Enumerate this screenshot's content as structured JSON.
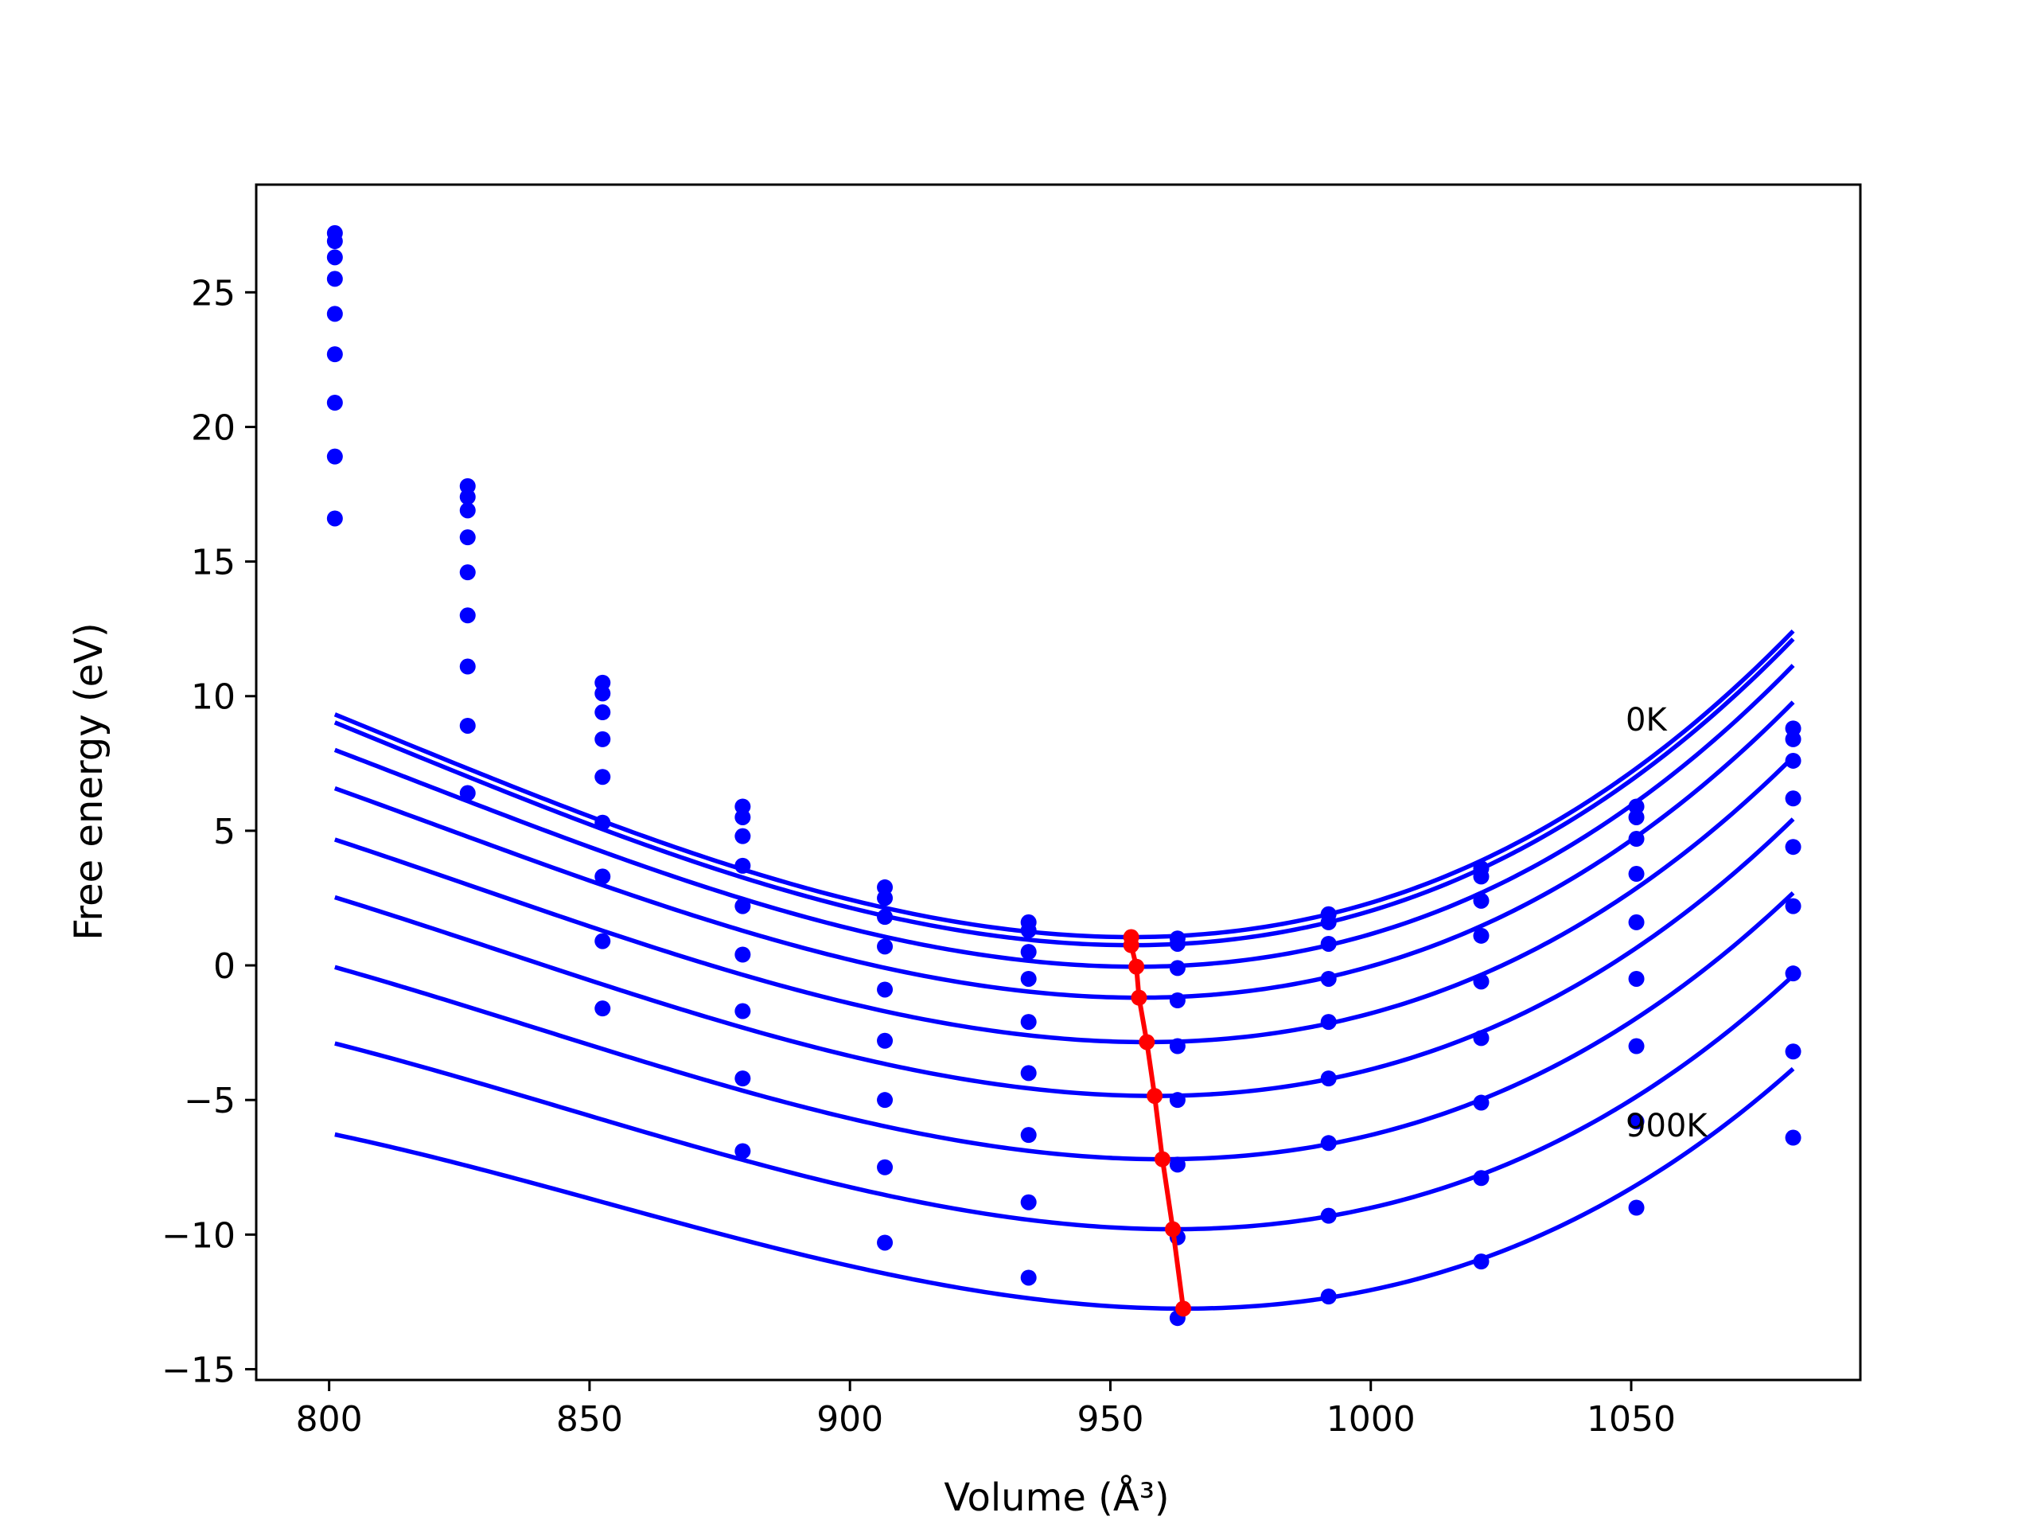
{
  "chart_data": {
    "type": "line",
    "title": "",
    "xlabel": "Volume (Å³)",
    "ylabel": "Free energy (eV)",
    "xlim": [
      786,
      1094
    ],
    "ylim": [
      -15.4,
      29.0
    ],
    "xticks": [
      800,
      850,
      900,
      950,
      1000,
      1050
    ],
    "yticks": [
      -15,
      -10,
      -5,
      0,
      5,
      10,
      15,
      20,
      25
    ],
    "xtick_labels": [
      "800",
      "850",
      "900",
      "950",
      "1000",
      "1050"
    ],
    "ytick_labels": [
      "−15",
      "−10",
      "−5",
      "0",
      "5",
      "10",
      "15",
      "20",
      "25"
    ],
    "grid": false,
    "legend": "none",
    "colors": {
      "fit": "#0000ff",
      "points": "#0000ff",
      "minimum": "#ff0000",
      "axes": "#000000"
    },
    "volumes": [
      801.1,
      826.6,
      852.5,
      879.4,
      906.7,
      934.3,
      962.9,
      991.9,
      1021.2,
      1051.0,
      1081.1
    ],
    "series": [
      {
        "points": [
          27.2,
          17.8,
          10.5,
          5.9,
          2.9,
          1.6,
          1.0,
          1.9,
          3.6,
          5.9,
          8.8
        ],
        "fit": {
          "e0": 1.05,
          "v0": 954.0,
          "a": 0.000545,
          "b": 1.25e-06
        }
      },
      {
        "points": [
          26.9,
          17.4,
          10.1,
          5.5,
          2.5,
          1.3,
          0.8,
          1.6,
          3.3,
          5.5,
          8.4
        ],
        "fit": {
          "e0": 0.75,
          "v0": 954.0,
          "a": 0.000545,
          "b": 1.25e-06
        }
      },
      {
        "points": [
          26.3,
          16.9,
          9.4,
          4.8,
          1.8,
          0.5,
          -0.1,
          0.8,
          2.4,
          4.7,
          7.6
        ],
        "fit": {
          "e0": -0.05,
          "v0": 955.0,
          "a": 0.00054,
          "b": 1.3e-06
        }
      },
      {
        "points": [
          25.5,
          15.9,
          8.4,
          3.7,
          0.7,
          -0.5,
          -1.3,
          -0.5,
          1.1,
          3.4,
          6.2
        ],
        "fit": {
          "e0": -1.2,
          "v0": 955.5,
          "a": 0.00053,
          "b": 1.32e-06
        }
      },
      {
        "points": [
          24.2,
          14.6,
          7.0,
          2.2,
          -0.9,
          -2.1,
          -3.0,
          -2.1,
          -0.6,
          1.6,
          4.4
        ],
        "fit": {
          "e0": -2.85,
          "v0": 957.0,
          "a": 0.00052,
          "b": 1.35e-06
        }
      },
      {
        "points": [
          22.7,
          13.0,
          5.3,
          0.4,
          -2.8,
          -4.0,
          -5.0,
          -4.2,
          -2.7,
          -0.5,
          2.2
        ],
        "fit": {
          "e0": -4.85,
          "v0": 958.5,
          "a": 0.000515,
          "b": 1.38e-06
        }
      },
      {
        "points": [
          20.9,
          11.1,
          3.3,
          -1.7,
          -5.0,
          -6.3,
          -7.4,
          -6.6,
          -5.1,
          -3.0,
          -0.3
        ],
        "fit": {
          "e0": -7.2,
          "v0": 960.0,
          "a": 0.000505,
          "b": 1.4e-06
        }
      },
      {
        "points": [
          18.9,
          8.9,
          0.9,
          -4.2,
          -7.5,
          -8.8,
          -10.1,
          -9.3,
          -7.9,
          -5.8,
          -3.2
        ],
        "fit": {
          "e0": -9.8,
          "v0": 962.0,
          "a": 0.000495,
          "b": 1.42e-06
        }
      },
      {
        "points": [
          16.6,
          6.4,
          -1.6,
          -6.9,
          -10.3,
          -11.6,
          -13.1,
          -12.3,
          -11.0,
          -9.0,
          -6.4
        ],
        "fit": {
          "e0": -12.75,
          "v0": 964.0,
          "a": 0.00048,
          "b": 1.45e-06
        }
      }
    ],
    "minima": {
      "x": [
        954.0,
        954.0,
        955.0,
        955.5,
        957.0,
        958.5,
        960.0,
        962.0,
        964.0
      ],
      "y": [
        1.05,
        0.75,
        -0.05,
        -1.2,
        -2.85,
        -4.85,
        -7.2,
        -9.8,
        -12.75
      ]
    },
    "annotations": [
      {
        "text": "0K",
        "x": 1051,
        "y": 8.9
      },
      {
        "text": "900K",
        "x": 1051,
        "y": -6.5
      }
    ]
  }
}
